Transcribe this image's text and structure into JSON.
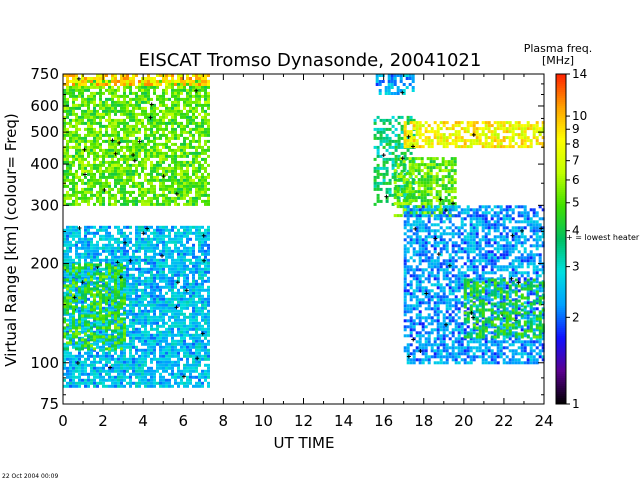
{
  "chart_data": {
    "type": "heatmap",
    "title": "EISCAT Tromso Dynasonde,  20041021",
    "xlabel": "UT TIME",
    "ylabel": "Virtual Range [km]  (colour= Freq)",
    "x_scale": "linear",
    "y_scale": "log",
    "xlim": [
      0,
      24
    ],
    "ylim": [
      75,
      750
    ],
    "x_ticks": [
      0,
      2,
      4,
      6,
      8,
      10,
      12,
      14,
      16,
      18,
      20,
      22,
      24
    ],
    "y_ticks": [
      75,
      100,
      200,
      300,
      400,
      500,
      600,
      750
    ],
    "colorbar": {
      "title_line1": "Plasma freq.",
      "title_line2": "[MHz]",
      "scale": "log",
      "range": [
        1,
        14
      ],
      "ticks": [
        1,
        2,
        3,
        4,
        5,
        6,
        7,
        8,
        9,
        10,
        14
      ],
      "colors": [
        "#000000",
        "#5a0090",
        "#1010ff",
        "#00a0ff",
        "#00e0e0",
        "#00c060",
        "#40e000",
        "#c0ff00",
        "#ffff00",
        "#ffa000",
        "#ff2000"
      ],
      "marker_note": "+ = lowest heater freq."
    },
    "regions": [
      {
        "x": [
          0.0,
          7.2
        ],
        "y": [
          85,
          260
        ],
        "freq": 2.5,
        "density": 0.8
      },
      {
        "x": [
          0.0,
          7.2
        ],
        "y": [
          300,
          720
        ],
        "freq": 5.0,
        "density": 0.75
      },
      {
        "x": [
          0.0,
          7.2
        ],
        "y": [
          700,
          750
        ],
        "freq": 9.0,
        "density": 0.7
      },
      {
        "x": [
          15.6,
          17.5
        ],
        "y": [
          650,
          750
        ],
        "freq": 2.3,
        "density": 0.6
      },
      {
        "x": [
          15.5,
          17.5
        ],
        "y": [
          300,
          560
        ],
        "freq": 3.5,
        "density": 0.55
      },
      {
        "x": [
          17.0,
          24.0
        ],
        "y": [
          450,
          540
        ],
        "freq": 8.0,
        "density": 0.7
      },
      {
        "x": [
          16.5,
          19.5
        ],
        "y": [
          280,
          420
        ],
        "freq": 5.0,
        "density": 0.7
      },
      {
        "x": [
          17.0,
          24.0
        ],
        "y": [
          100,
          300
        ],
        "freq": 2.2,
        "density": 0.65
      },
      {
        "x": [
          20.0,
          24.0
        ],
        "y": [
          120,
          180
        ],
        "freq": 4.2,
        "density": 0.5
      },
      {
        "x": [
          0.0,
          3.0
        ],
        "y": [
          110,
          200
        ],
        "freq": 4.5,
        "density": 0.5
      }
    ]
  },
  "footer": {
    "timestamp": "22 Oct 2004 00:09"
  }
}
